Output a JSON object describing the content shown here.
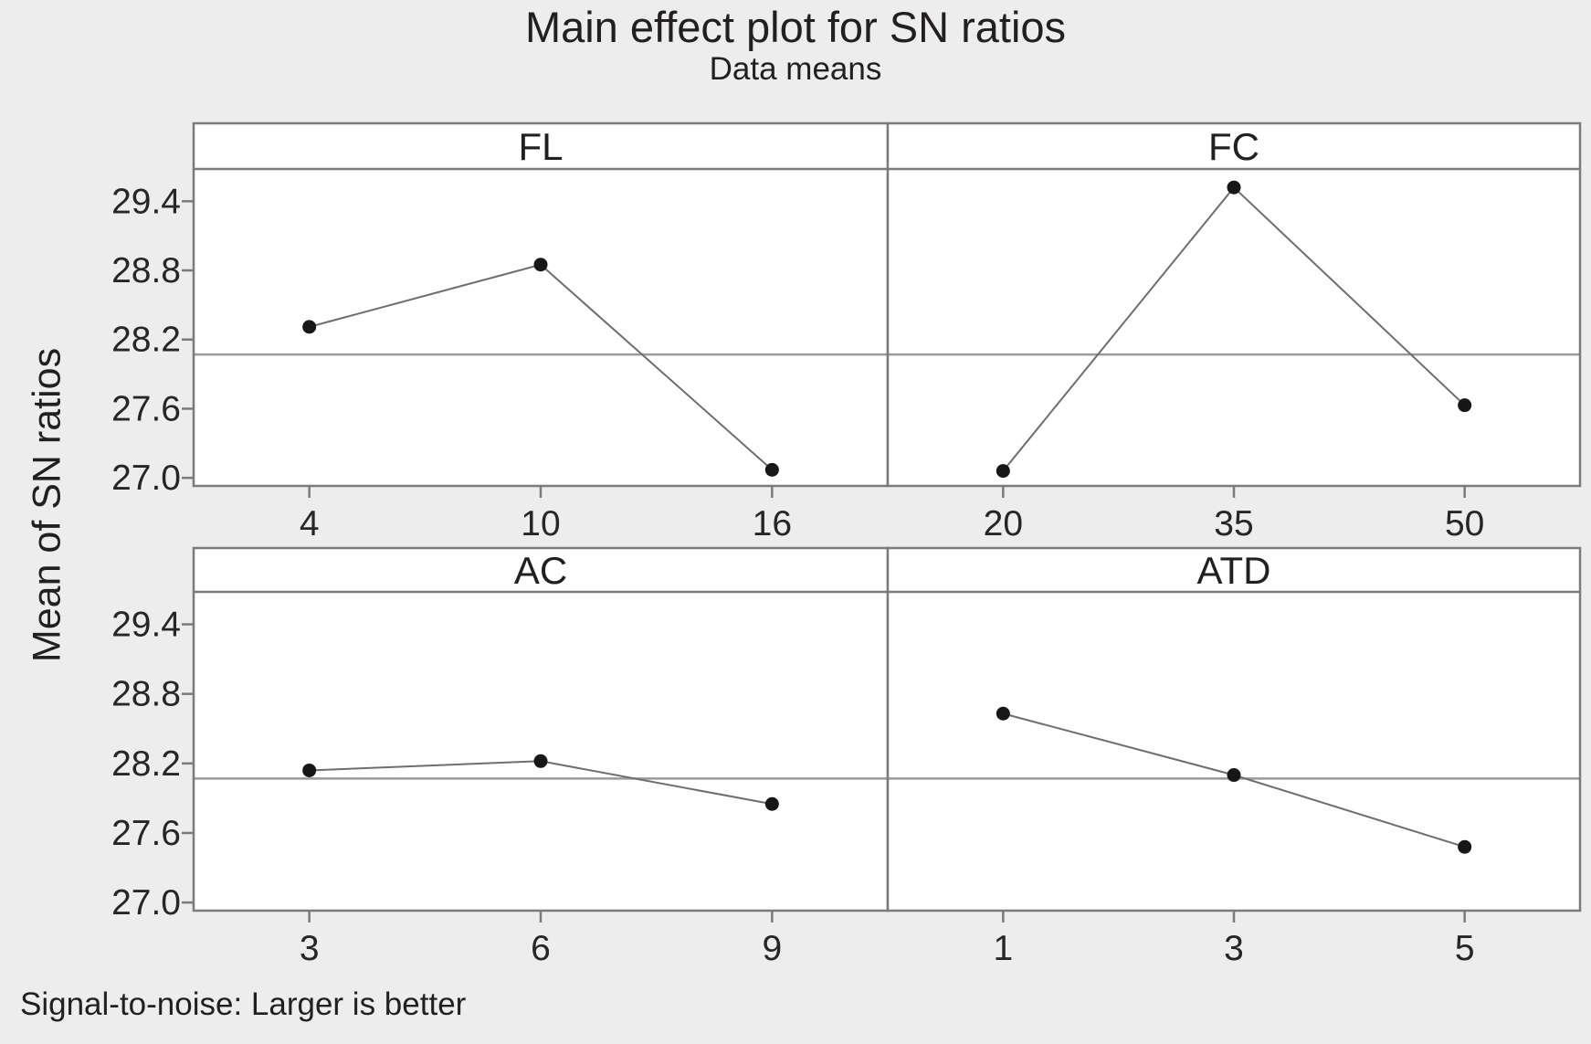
{
  "chart_data": {
    "type": "line",
    "title": "Main effect plot for SN ratios",
    "subtitle": "Data means",
    "ylabel": "Mean of SN ratios",
    "footnote": "Signal-to-noise: Larger is better",
    "yticks": [
      29.4,
      28.8,
      28.2,
      27.6,
      27.0
    ],
    "ylim": [
      26.93,
      29.68
    ],
    "reference_line": 28.07,
    "grid": "reference-line-only",
    "legend": "none",
    "panels": [
      {
        "factor": "FL",
        "levels": [
          "4",
          "10",
          "16"
        ],
        "means": [
          28.31,
          28.85,
          27.07
        ]
      },
      {
        "factor": "FC",
        "levels": [
          "20",
          "35",
          "50"
        ],
        "means": [
          27.06,
          29.52,
          27.63
        ]
      },
      {
        "factor": "AC",
        "levels": [
          "3",
          "6",
          "9"
        ],
        "means": [
          28.14,
          28.22,
          27.85
        ]
      },
      {
        "factor": "ATD",
        "levels": [
          "1",
          "3",
          "5"
        ],
        "means": [
          28.63,
          28.1,
          27.48
        ]
      }
    ]
  }
}
